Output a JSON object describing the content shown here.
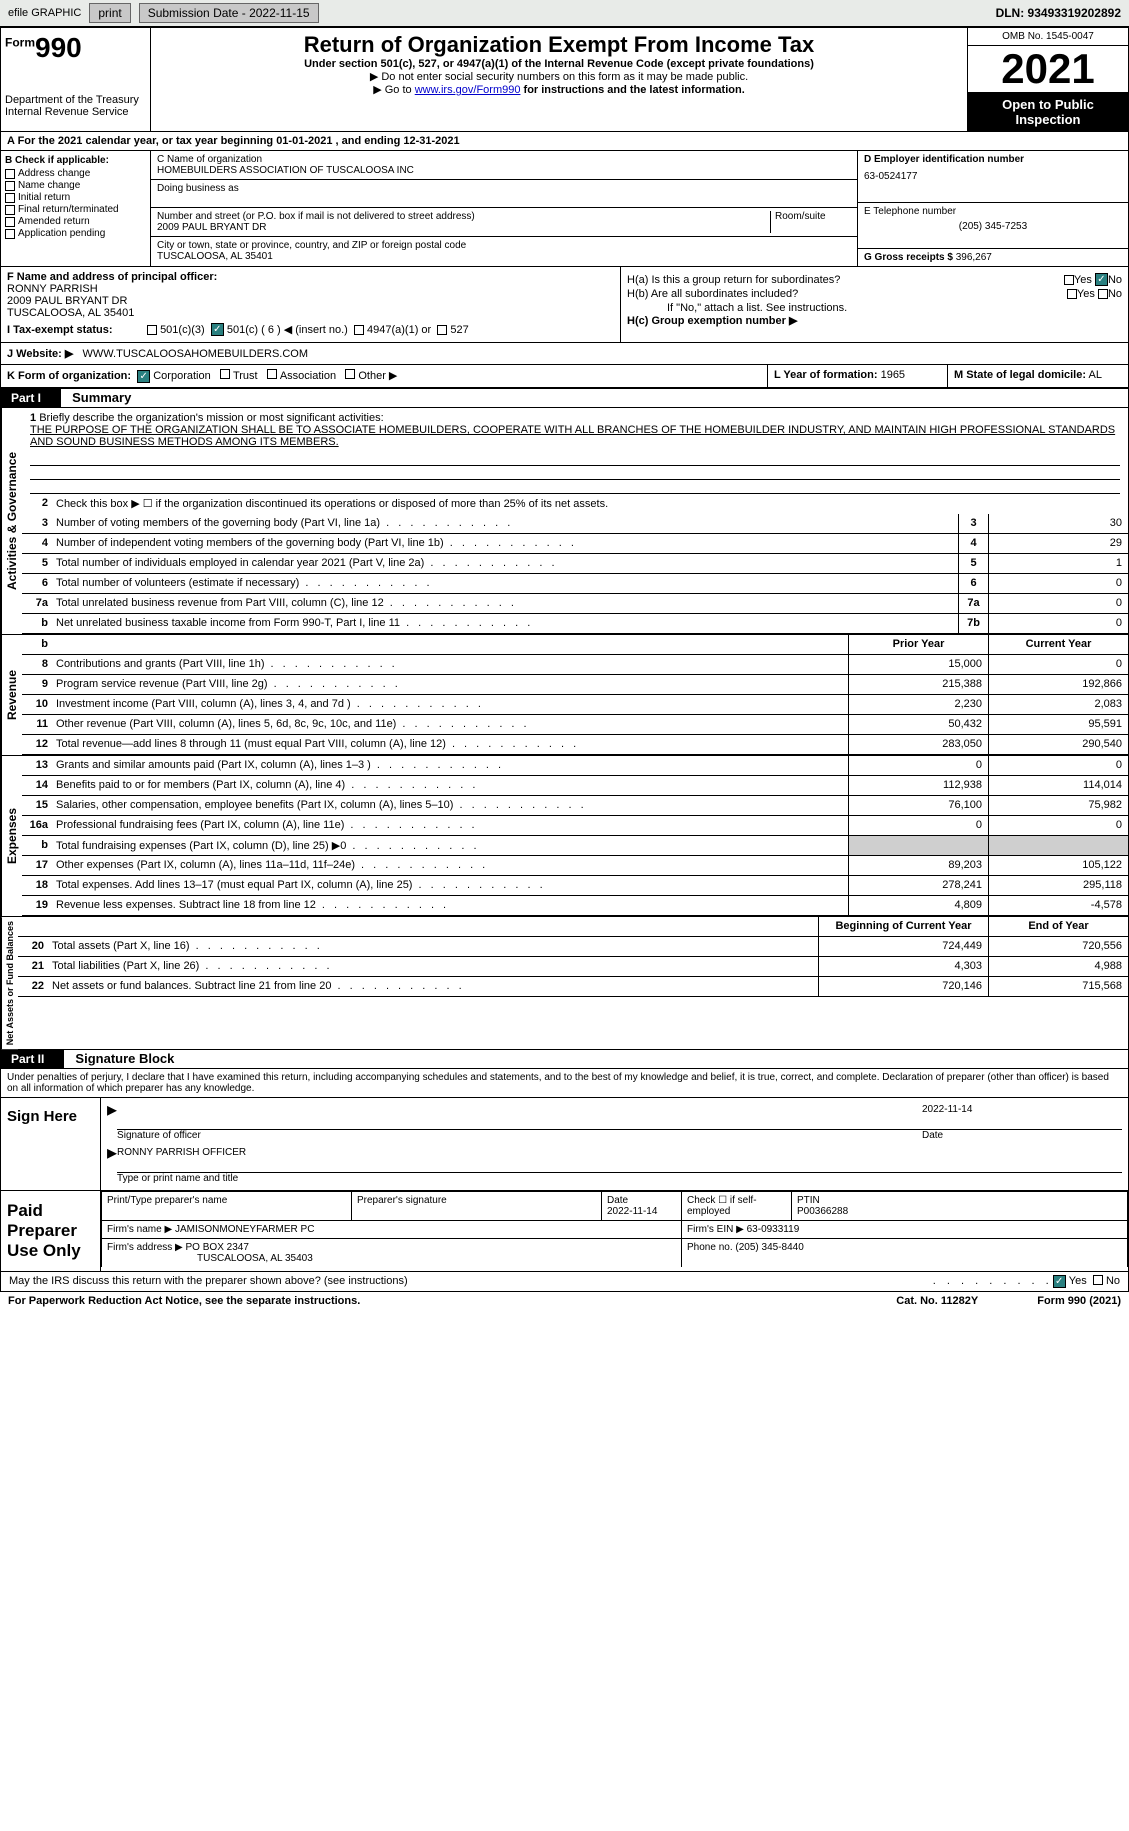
{
  "topbar": {
    "efile": "efile GRAPHIC",
    "print": "print",
    "submission": "Submission Date - 2022-11-15",
    "dln": "DLN: 93493319202892"
  },
  "header": {
    "form_word": "Form",
    "form_num": "990",
    "dept": "Department of the Treasury\nInternal Revenue Service",
    "title": "Return of Organization Exempt From Income Tax",
    "subtitle": "Under section 501(c), 527, or 4947(a)(1) of the Internal Revenue Code (except private foundations)",
    "instr1": "▶ Do not enter social security numbers on this form as it may be made public.",
    "instr2_pre": "▶ Go to ",
    "instr2_link": "www.irs.gov/Form990",
    "instr2_post": " for instructions and the latest information.",
    "omb": "OMB No. 1545-0047",
    "year": "2021",
    "open_pub": "Open to Public Inspection"
  },
  "line_a": "A For the 2021 calendar year, or tax year beginning 01-01-2021    , and ending 12-31-2021",
  "box_b": {
    "title": "B Check if applicable:",
    "items": [
      "Address change",
      "Name change",
      "Initial return",
      "Final return/terminated",
      "Amended return",
      "Application pending"
    ]
  },
  "box_c": {
    "name_label": "C Name of organization",
    "name": "HOMEBUILDERS ASSOCIATION OF TUSCALOOSA INC",
    "dba_label": "Doing business as",
    "addr_label": "Number and street (or P.O. box if mail is not delivered to street address)",
    "room_label": "Room/suite",
    "addr": "2009 PAUL BRYANT DR",
    "city_label": "City or town, state or province, country, and ZIP or foreign postal code",
    "city": "TUSCALOOSA, AL  35401"
  },
  "box_d": {
    "label": "D Employer identification number",
    "value": "63-0524177"
  },
  "box_e": {
    "label": "E Telephone number",
    "value": "(205) 345-7253"
  },
  "box_g": {
    "label": "G Gross receipts $",
    "value": "396,267"
  },
  "box_f": {
    "label": "F  Name and address of principal officer:",
    "name": "RONNY PARRISH",
    "addr1": "2009 PAUL BRYANT DR",
    "addr2": "TUSCALOOSA, AL  35401"
  },
  "box_h": {
    "ha": "H(a)  Is this a group return for subordinates?",
    "hb": "H(b)  Are all subordinates included?",
    "hb_note": "If \"No,\" attach a list. See instructions.",
    "hc": "H(c)  Group exemption number ▶",
    "yes": "Yes",
    "no": "No"
  },
  "line_i": {
    "label": "I    Tax-exempt status:",
    "opts": [
      "501(c)(3)",
      "501(c) ( 6 ) ◀ (insert no.)",
      "4947(a)(1) or",
      "527"
    ]
  },
  "line_j": {
    "label": "J    Website: ▶",
    "value": "WWW.TUSCALOOSAHOMEBUILDERS.COM"
  },
  "line_k": {
    "label": "K Form of organization:",
    "opts": [
      "Corporation",
      "Trust",
      "Association",
      "Other ▶"
    ]
  },
  "line_l": {
    "label": "L Year of formation:",
    "value": "1965"
  },
  "line_m": {
    "label": "M State of legal domicile:",
    "value": "AL"
  },
  "part1": {
    "head": "Part I",
    "title": "Summary"
  },
  "mission": {
    "q": "Briefly describe the organization's mission or most significant activities:",
    "text": "THE PURPOSE OF THE ORGANIZATION SHALL BE TO ASSOCIATE HOMEBUILDERS, COOPERATE WITH ALL BRANCHES OF THE HOMEBUILDER INDUSTRY, AND MAINTAIN HIGH PROFESSIONAL STANDARDS AND SOUND BUSINESS METHODS AMONG ITS MEMBERS."
  },
  "sidelabels": {
    "gov": "Activities & Governance",
    "rev": "Revenue",
    "exp": "Expenses",
    "net": "Net Assets or Fund Balances"
  },
  "q2": "Check this box ▶ ☐  if the organization discontinued its operations or disposed of more than 25% of its net assets.",
  "gov_rows": [
    {
      "n": "3",
      "t": "Number of voting members of the governing body (Part VI, line 1a)",
      "b": "3",
      "v": "30"
    },
    {
      "n": "4",
      "t": "Number of independent voting members of the governing body (Part VI, line 1b)",
      "b": "4",
      "v": "29"
    },
    {
      "n": "5",
      "t": "Total number of individuals employed in calendar year 2021 (Part V, line 2a)",
      "b": "5",
      "v": "1"
    },
    {
      "n": "6",
      "t": "Total number of volunteers (estimate if necessary)",
      "b": "6",
      "v": "0"
    },
    {
      "n": "7a",
      "t": "Total unrelated business revenue from Part VIII, column (C), line 12",
      "b": "7a",
      "v": "0"
    },
    {
      "n": "b",
      "t": "Net unrelated business taxable income from Form 990-T, Part I, line 11",
      "b": "7b",
      "v": "0"
    }
  ],
  "colheads": {
    "prior": "Prior Year",
    "current": "Current Year"
  },
  "rev_rows": [
    {
      "n": "8",
      "t": "Contributions and grants (Part VIII, line 1h)",
      "p": "15,000",
      "c": "0"
    },
    {
      "n": "9",
      "t": "Program service revenue (Part VIII, line 2g)",
      "p": "215,388",
      "c": "192,866"
    },
    {
      "n": "10",
      "t": "Investment income (Part VIII, column (A), lines 3, 4, and 7d )",
      "p": "2,230",
      "c": "2,083"
    },
    {
      "n": "11",
      "t": "Other revenue (Part VIII, column (A), lines 5, 6d, 8c, 9c, 10c, and 11e)",
      "p": "50,432",
      "c": "95,591"
    },
    {
      "n": "12",
      "t": "Total revenue—add lines 8 through 11 (must equal Part VIII, column (A), line 12)",
      "p": "283,050",
      "c": "290,540"
    }
  ],
  "exp_rows": [
    {
      "n": "13",
      "t": "Grants and similar amounts paid (Part IX, column (A), lines 1–3 )",
      "p": "0",
      "c": "0"
    },
    {
      "n": "14",
      "t": "Benefits paid to or for members (Part IX, column (A), line 4)",
      "p": "112,938",
      "c": "114,014"
    },
    {
      "n": "15",
      "t": "Salaries, other compensation, employee benefits (Part IX, column (A), lines 5–10)",
      "p": "76,100",
      "c": "75,982"
    },
    {
      "n": "16a",
      "t": "Professional fundraising fees (Part IX, column (A), line 11e)",
      "p": "0",
      "c": "0"
    },
    {
      "n": "b",
      "t": "Total fundraising expenses (Part IX, column (D), line 25) ▶0",
      "p": "",
      "c": "",
      "shade": true
    },
    {
      "n": "17",
      "t": "Other expenses (Part IX, column (A), lines 11a–11d, 11f–24e)",
      "p": "89,203",
      "c": "105,122"
    },
    {
      "n": "18",
      "t": "Total expenses. Add lines 13–17 (must equal Part IX, column (A), line 25)",
      "p": "278,241",
      "c": "295,118"
    },
    {
      "n": "19",
      "t": "Revenue less expenses. Subtract line 18 from line 12",
      "p": "4,809",
      "c": "-4,578"
    }
  ],
  "net_heads": {
    "begin": "Beginning of Current Year",
    "end": "End of Year"
  },
  "net_rows": [
    {
      "n": "20",
      "t": "Total assets (Part X, line 16)",
      "p": "724,449",
      "c": "720,556"
    },
    {
      "n": "21",
      "t": "Total liabilities (Part X, line 26)",
      "p": "4,303",
      "c": "4,988"
    },
    {
      "n": "22",
      "t": "Net assets or fund balances. Subtract line 21 from line 20",
      "p": "720,146",
      "c": "715,568"
    }
  ],
  "part2": {
    "head": "Part II",
    "title": "Signature Block"
  },
  "penalties": "Under penalties of perjury, I declare that I have examined this return, including accompanying schedules and statements, and to the best of my knowledge and belief, it is true, correct, and complete. Declaration of preparer (other than officer) is based on all information of which preparer has any knowledge.",
  "sign": {
    "label": "Sign Here",
    "sig_label": "Signature of officer",
    "date": "2022-11-14",
    "date_label": "Date",
    "name": "RONNY PARRISH  OFFICER",
    "name_label": "Type or print name and title"
  },
  "prep": {
    "label": "Paid Preparer Use Only",
    "h_name": "Print/Type preparer's name",
    "h_sig": "Preparer's signature",
    "h_date": "Date",
    "date": "2022-11-14",
    "h_check": "Check ☐ if self-employed",
    "h_ptin": "PTIN",
    "ptin": "P00366288",
    "firm_name_l": "Firm's name    ▶",
    "firm_name": "JAMISONMONEYFARMER PC",
    "firm_ein_l": "Firm's EIN ▶",
    "firm_ein": "63-0933119",
    "firm_addr_l": "Firm's address ▶",
    "firm_addr": "PO BOX 2347",
    "firm_addr2": "TUSCALOOSA, AL  35403",
    "phone_l": "Phone no.",
    "phone": "(205) 345-8440"
  },
  "discuss": {
    "q": "May the IRS discuss this return with the preparer shown above? (see instructions)",
    "yes": "Yes",
    "no": "No"
  },
  "footer": {
    "pra": "For Paperwork Reduction Act Notice, see the separate instructions.",
    "cat": "Cat. No. 11282Y",
    "form": "Form 990 (2021)"
  }
}
